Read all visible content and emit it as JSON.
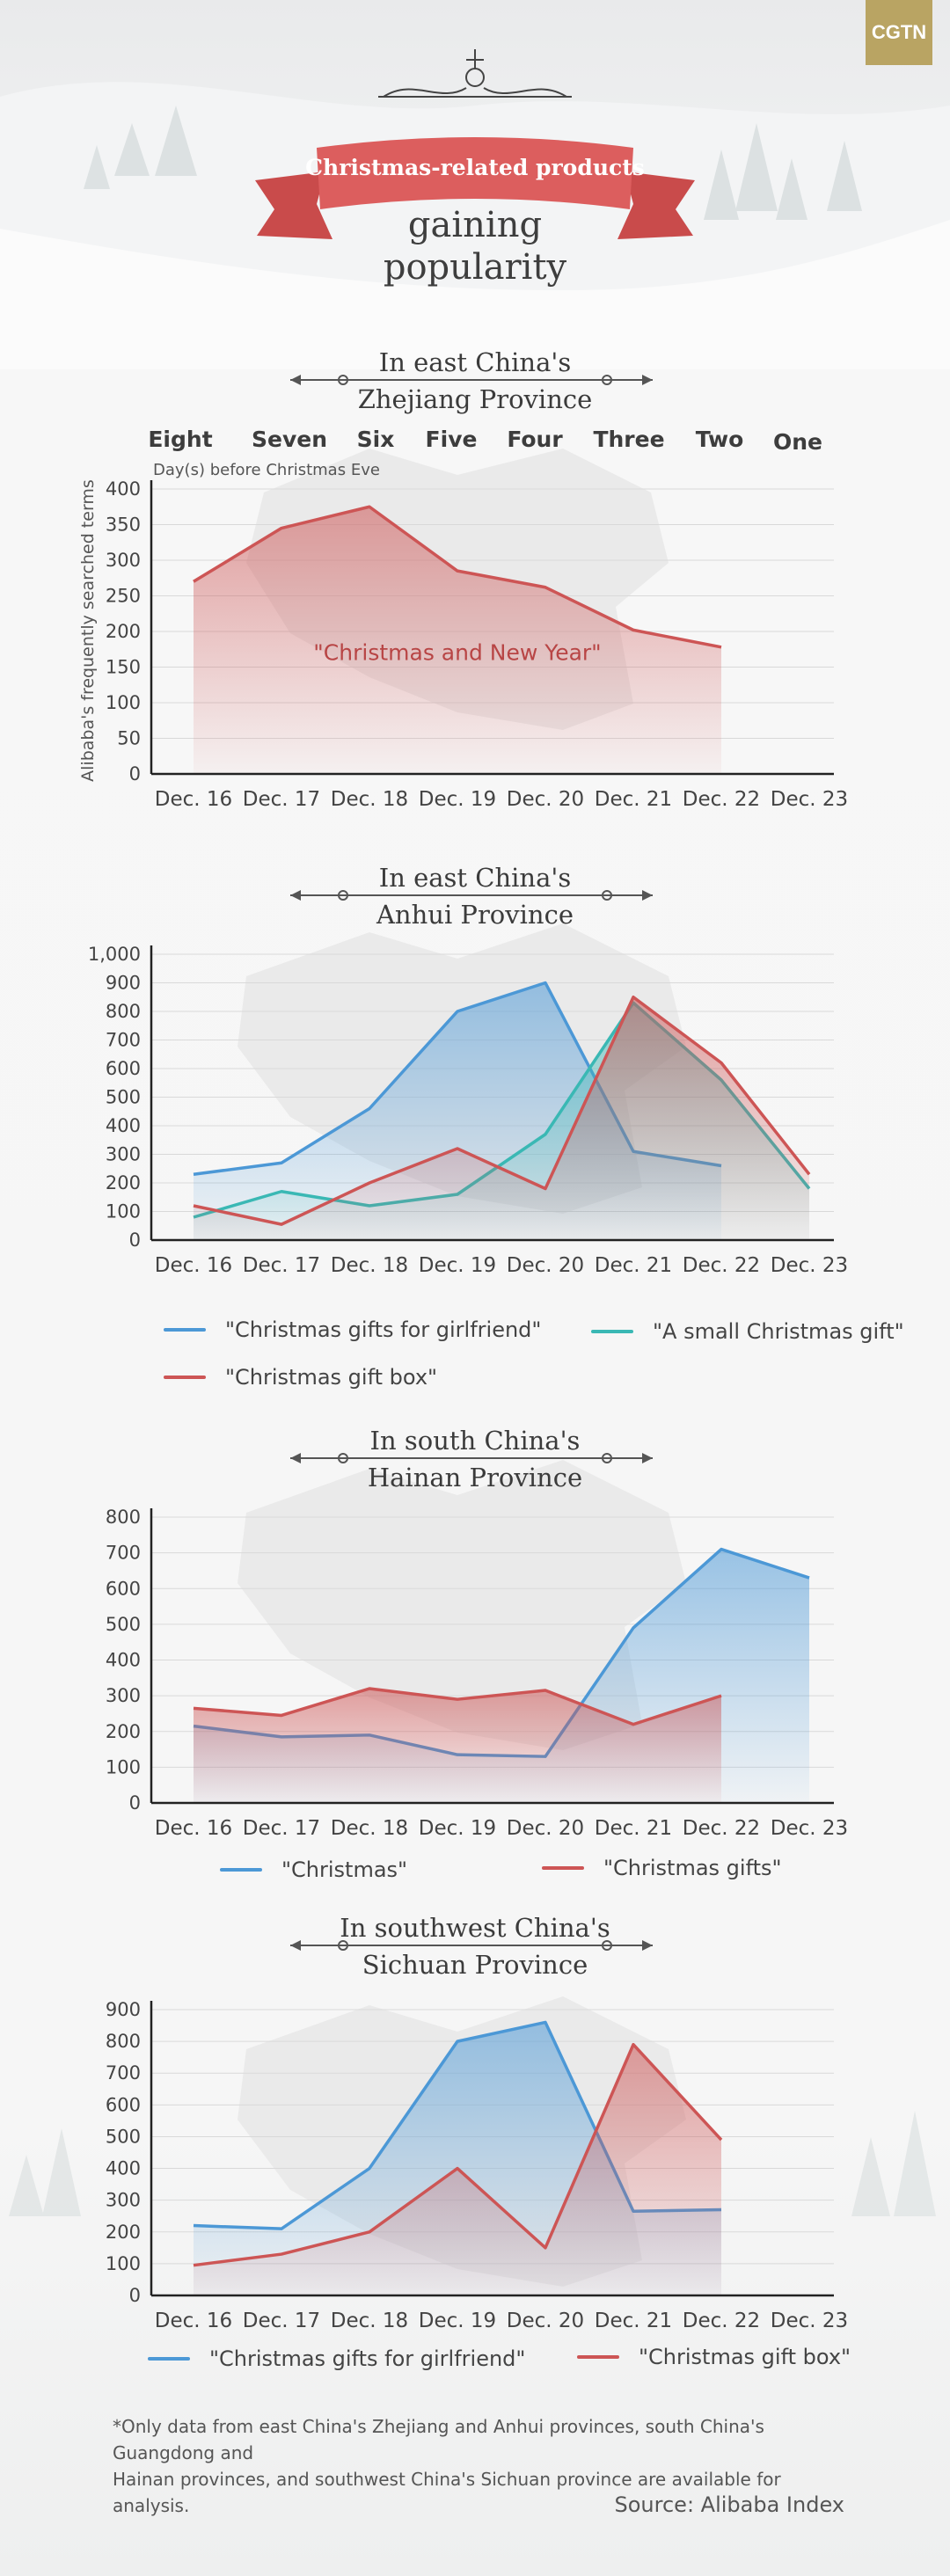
{
  "header": {
    "logo": "CGTN",
    "banner": "Christmas-related products",
    "headline_line1": "gaining",
    "headline_line2": "popularity"
  },
  "sections": [
    {
      "title_line1": "In east China's",
      "title_line2": "Zhejiang Province"
    },
    {
      "title_line1": "In east China's",
      "title_line2": "Anhui Province"
    },
    {
      "title_line1": "In south China's",
      "title_line2": "Hainan Province"
    },
    {
      "title_line1": "In southwest China's",
      "title_line2": "Sichuan Province"
    }
  ],
  "countdown": {
    "labels": [
      "Eight",
      "Seven",
      "Six",
      "Five",
      "Four",
      "Three",
      "Two",
      "One"
    ],
    "caption": "Day(s) before Christmas Eve"
  },
  "colors": {
    "red": "#cd5555",
    "blue": "#4c98d6",
    "teal": "#3ab8b4"
  },
  "chart_data": [
    {
      "type": "area",
      "categories": [
        "Dec. 16",
        "Dec. 17",
        "Dec. 18",
        "Dec. 19",
        "Dec. 20",
        "Dec. 21",
        "Dec. 22",
        "Dec. 23"
      ],
      "ylabel": "Alibaba's frequently searched terms",
      "ylim": [
        0,
        400
      ],
      "yticks": [
        0,
        50,
        100,
        150,
        200,
        250,
        300,
        350,
        400
      ],
      "annotation": "\"Christmas and New Year\"",
      "series": [
        {
          "name": "\"Christmas and New Year\"",
          "color": "red",
          "values": [
            270,
            345,
            375,
            285,
            262,
            202,
            178,
            null
          ]
        }
      ]
    },
    {
      "type": "area",
      "categories": [
        "Dec. 16",
        "Dec. 17",
        "Dec. 18",
        "Dec. 19",
        "Dec. 20",
        "Dec. 21",
        "Dec. 22",
        "Dec. 23"
      ],
      "ylim": [
        0,
        1000
      ],
      "yticks": [
        0,
        100,
        200,
        300,
        400,
        500,
        600,
        700,
        800,
        900,
        1000
      ],
      "series": [
        {
          "name": "\"Christmas gifts for girlfriend\"",
          "color": "blue",
          "values": [
            230,
            270,
            460,
            800,
            900,
            310,
            260,
            null
          ]
        },
        {
          "name": "\"A small Christmas gift\"",
          "color": "teal",
          "values": [
            80,
            170,
            120,
            160,
            370,
            830,
            560,
            180
          ]
        },
        {
          "name": "\"Christmas gift box\"",
          "color": "red",
          "values": [
            120,
            55,
            200,
            320,
            180,
            850,
            620,
            230
          ]
        }
      ]
    },
    {
      "type": "area",
      "categories": [
        "Dec. 16",
        "Dec. 17",
        "Dec. 18",
        "Dec. 19",
        "Dec. 20",
        "Dec. 21",
        "Dec. 22",
        "Dec. 23"
      ],
      "ylim": [
        0,
        800
      ],
      "yticks": [
        0,
        100,
        200,
        300,
        400,
        500,
        600,
        700,
        800
      ],
      "series": [
        {
          "name": "\"Christmas\"",
          "color": "blue",
          "values": [
            215,
            185,
            190,
            135,
            130,
            490,
            710,
            630
          ]
        },
        {
          "name": "\"Christmas gifts\"",
          "color": "red",
          "values": [
            265,
            245,
            320,
            290,
            315,
            220,
            300,
            null
          ]
        }
      ]
    },
    {
      "type": "area",
      "categories": [
        "Dec. 16",
        "Dec. 17",
        "Dec. 18",
        "Dec. 19",
        "Dec. 20",
        "Dec. 21",
        "Dec. 22",
        "Dec. 23"
      ],
      "ylim": [
        0,
        900
      ],
      "yticks": [
        0,
        100,
        200,
        300,
        400,
        500,
        600,
        700,
        800,
        900
      ],
      "series": [
        {
          "name": "\"Christmas gifts for girlfriend\"",
          "color": "blue",
          "values": [
            220,
            210,
            400,
            800,
            860,
            265,
            270,
            null
          ]
        },
        {
          "name": "\"Christmas gift box\"",
          "color": "red",
          "values": [
            95,
            130,
            200,
            400,
            150,
            790,
            490,
            null
          ]
        }
      ]
    }
  ],
  "footer": {
    "note_line1": "*Only data from east China's Zhejiang and Anhui provinces, south China's Guangdong and",
    "note_line2": "Hainan provinces, and southwest China's Sichuan province are available for analysis.",
    "source": "Source: Alibaba Index"
  }
}
